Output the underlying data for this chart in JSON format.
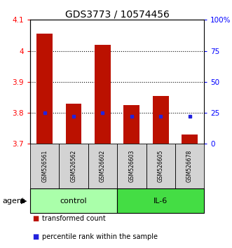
{
  "title": "GDS3773 / 10574456",
  "samples": [
    "GSM526561",
    "GSM526562",
    "GSM526602",
    "GSM526603",
    "GSM526605",
    "GSM526678"
  ],
  "red_values": [
    4.055,
    3.83,
    4.02,
    3.825,
    3.855,
    3.73
  ],
  "blue_percentiles": [
    25,
    22,
    25,
    22,
    22,
    22
  ],
  "ylim_left": [
    3.7,
    4.1
  ],
  "ylim_right": [
    0,
    100
  ],
  "yticks_left": [
    3.7,
    3.8,
    3.9,
    4.0,
    4.1
  ],
  "yticks_right": [
    0,
    25,
    50,
    75,
    100
  ],
  "ytick_labels_right": [
    "0",
    "25",
    "50",
    "75",
    "100%"
  ],
  "ytick_labels_left": [
    "3.7",
    "3.8",
    "3.9",
    "4",
    "4.1"
  ],
  "groups": [
    {
      "label": "control",
      "indices": [
        0,
        1,
        2
      ],
      "color": "#AAFFAA"
    },
    {
      "label": "IL-6",
      "indices": [
        3,
        4,
        5
      ],
      "color": "#44DD44"
    }
  ],
  "bar_color": "#BB1100",
  "blue_color": "#2222DD",
  "bar_bottom": 3.7,
  "legend_items": [
    {
      "label": "transformed count",
      "color": "#BB1100"
    },
    {
      "label": "percentile rank within the sample",
      "color": "#2222DD"
    }
  ],
  "title_fontsize": 10,
  "tick_fontsize": 7.5,
  "sample_fontsize": 5.5,
  "group_fontsize": 8,
  "agent_fontsize": 8,
  "legend_fontsize": 7,
  "bar_width": 0.55
}
